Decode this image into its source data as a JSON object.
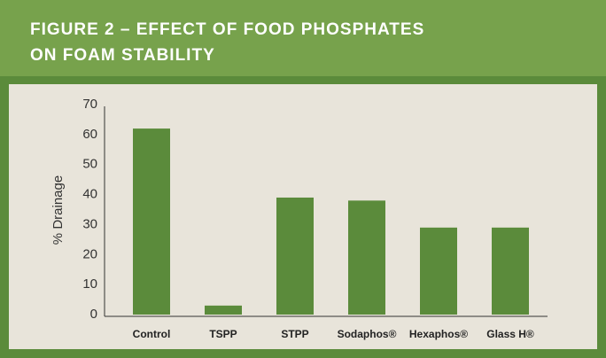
{
  "chart_data": {
    "type": "bar",
    "title": [
      "FIGURE 2 – EFFECT OF FOOD PHOSPHATES",
      "ON FOAM STABILITY"
    ],
    "y_label": "% Drainage",
    "categories": [
      "Control",
      "TSPP",
      "STPP",
      "Sodaphos®",
      "Hexaphos®",
      "Glass H®"
    ],
    "values": [
      62,
      3,
      39,
      38,
      29,
      29
    ],
    "color": "#5b8b3b",
    "ylim": [
      0,
      70
    ],
    "yticks": [
      0,
      10,
      20,
      30,
      40,
      50,
      60,
      70
    ],
    "grid": false
  }
}
